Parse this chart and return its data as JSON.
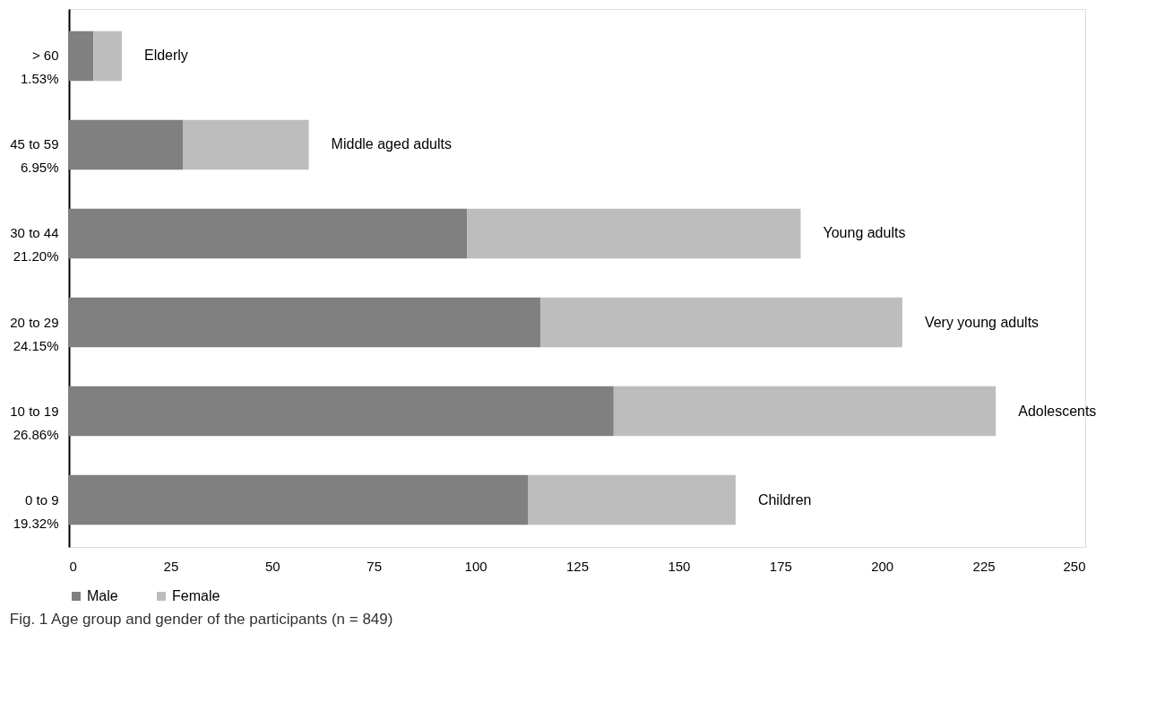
{
  "chart_data": {
    "type": "bar",
    "orientation": "horizontal",
    "stacked": true,
    "title": "Fig. 1 Age group and gender of the participants (n = 849)",
    "categories": [
      "> 60\n1.53%",
      "45 to 59\n6.95%",
      "30 to 44\n21.20%",
      "20 to 29\n24.15%",
      "10 to 19\n26.86%",
      "0 to 9\n19.32%"
    ],
    "series": [
      {
        "name": "Male",
        "color": "#808080",
        "values": [
          6,
          28,
          98,
          116,
          134,
          113
        ]
      },
      {
        "name": "Female",
        "color": "#bdbdbd",
        "values": [
          7,
          31,
          82,
          89,
          94,
          51
        ]
      }
    ],
    "xlim": [
      0,
      250
    ],
    "xticks": [
      0,
      25,
      50,
      75,
      100,
      125,
      150,
      175,
      200,
      225,
      250
    ],
    "grid": false,
    "legend": "bottom",
    "annotations": [
      {
        "text": "Elderly",
        "x": 13,
        "y": "> 60\n1.53%"
      },
      {
        "text": "Middle aged adults",
        "x": 59,
        "y": "45 to 59\n6.95%"
      },
      {
        "text": "Young adults",
        "x": 180,
        "y": "30 to 44\n21.20%"
      },
      {
        "text": "Very young adults",
        "x": 205,
        "y": "20 to 29\n24.15%"
      },
      {
        "text": "Adolescents",
        "x": 228,
        "y": "10 to 19\n26.86%"
      },
      {
        "text": "Children",
        "x": 164,
        "y": "0 to 9\n19.32%"
      }
    ]
  }
}
